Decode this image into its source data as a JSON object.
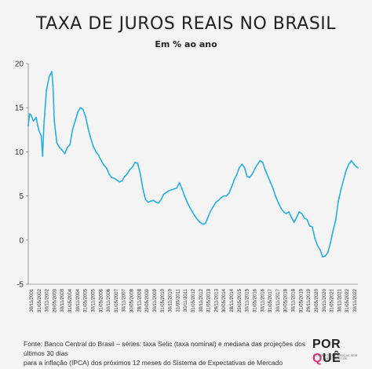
{
  "header": {
    "title": "TAXA DE JUROS REAIS NO BRASIL",
    "subtitle": "Em % ao ano"
  },
  "footer": {
    "source_line1": "Fonte: Banco Central do Brasil – séries: taxa Selic (taxa nominal) e mediana das projeções dos últimos 30 dias",
    "source_line2": "para a inflação (IPCA) dos próximos 12 meses do Sistema de Expectativas de Mercado"
  },
  "logo": {
    "text": "POR QUÊ",
    "tagline": "CONCEITOS E FINANÇAS SEM PRECONCEITOS",
    "accent_color": "#e0317c"
  },
  "chart_data": {
    "type": "line",
    "title": "TAXA DE JUROS REAIS NO BRASIL",
    "subtitle": "Em % ao ano",
    "xlabel": "",
    "ylabel": "",
    "ylim": [
      -5,
      20
    ],
    "y_ticks": [
      -5,
      0,
      5,
      10,
      15,
      20
    ],
    "grid": false,
    "line_color": "#2aaee0",
    "x_tick_labels": [
      "30/11/2001",
      "31/05/2002",
      "30/11/2002",
      "29/05/2003",
      "30/11/2003",
      "31/05/2004",
      "30/11/2004",
      "31/05/2005",
      "30/11/2005",
      "31/05/2006",
      "30/11/2006",
      "31/05/2007",
      "30/11/2007",
      "30/05/2008",
      "28/11/2008",
      "29/05/2009",
      "30/11/2009",
      "31/05/2010",
      "30/11/2010",
      "31/05/2011",
      "30/11/2011",
      "31/05/2012",
      "30/11/2012",
      "31/05/2013",
      "29/11/2013",
      "30/05/2014",
      "28/11/2014",
      "29/05/2015",
      "30/11/2015",
      "31/05/2016",
      "30/11/2016",
      "31/05/2017",
      "30/11/2017",
      "30/05/2018",
      "30/11/2018",
      "31/05/2019",
      "29/11/2019",
      "29/05/2020",
      "30/11/2020",
      "31/05/2021",
      "30/11/2021",
      "31/05/2022",
      "30/11/2022"
    ],
    "x": [
      "2001-11",
      "2001-12",
      "2002-01",
      "2002-03",
      "2002-05",
      "2002-07",
      "2002-09",
      "2002-10",
      "2002-11",
      "2003-01",
      "2003-03",
      "2003-05",
      "2003-06",
      "2003-07",
      "2003-09",
      "2003-11",
      "2004-01",
      "2004-03",
      "2004-05",
      "2004-07",
      "2004-09",
      "2004-11",
      "2005-01",
      "2005-03",
      "2005-05",
      "2005-07",
      "2005-09",
      "2005-11",
      "2006-01",
      "2006-03",
      "2006-05",
      "2006-07",
      "2006-09",
      "2006-11",
      "2007-01",
      "2007-03",
      "2007-05",
      "2007-07",
      "2007-09",
      "2007-11",
      "2008-01",
      "2008-03",
      "2008-05",
      "2008-07",
      "2008-09",
      "2008-11",
      "2009-01",
      "2009-03",
      "2009-05",
      "2009-07",
      "2009-09",
      "2009-11",
      "2010-01",
      "2010-03",
      "2010-05",
      "2010-07",
      "2010-09",
      "2010-11",
      "2011-01",
      "2011-03",
      "2011-05",
      "2011-07",
      "2011-09",
      "2011-11",
      "2012-01",
      "2012-03",
      "2012-05",
      "2012-07",
      "2012-09",
      "2012-11",
      "2013-01",
      "2013-03",
      "2013-05",
      "2013-07",
      "2013-09",
      "2013-11",
      "2014-01",
      "2014-03",
      "2014-05",
      "2014-07",
      "2014-09",
      "2014-11",
      "2015-01",
      "2015-03",
      "2015-05",
      "2015-07",
      "2015-09",
      "2015-11",
      "2016-01",
      "2016-03",
      "2016-05",
      "2016-07",
      "2016-09",
      "2016-11",
      "2017-01",
      "2017-03",
      "2017-05",
      "2017-07",
      "2017-09",
      "2017-11",
      "2018-01",
      "2018-03",
      "2018-05",
      "2018-07",
      "2018-09",
      "2018-11",
      "2019-01",
      "2019-03",
      "2019-05",
      "2019-07",
      "2019-09",
      "2019-11",
      "2020-01",
      "2020-03",
      "2020-05",
      "2020-07",
      "2020-09",
      "2020-11",
      "2021-01",
      "2021-03",
      "2021-05",
      "2021-07",
      "2021-09",
      "2021-11",
      "2022-01",
      "2022-03",
      "2022-05",
      "2022-07",
      "2022-09",
      "2022-11",
      "2022-12"
    ],
    "series": [
      {
        "values": [
          13.0,
          14.3,
          14.2,
          13.5,
          13.9,
          12.5,
          11.8,
          9.5,
          13.0,
          17.0,
          18.5,
          19.1,
          17.5,
          13.5,
          11.0,
          10.5,
          10.2,
          9.8,
          10.5,
          10.8,
          12.5,
          13.5,
          14.5,
          15.0,
          14.8,
          14.0,
          12.6,
          11.5,
          10.6,
          10.0,
          9.6,
          9.0,
          8.5,
          8.2,
          7.5,
          7.1,
          7.0,
          6.8,
          6.6,
          6.7,
          7.2,
          7.5,
          8.0,
          8.3,
          8.8,
          8.7,
          7.5,
          5.8,
          4.6,
          4.3,
          4.4,
          4.5,
          4.3,
          4.2,
          4.6,
          5.2,
          5.4,
          5.6,
          5.7,
          5.8,
          5.9,
          6.5,
          5.8,
          5.0,
          4.3,
          3.7,
          3.2,
          2.7,
          2.3,
          2.0,
          1.8,
          1.9,
          2.6,
          3.3,
          3.8,
          4.3,
          4.5,
          4.8,
          5.0,
          5.0,
          5.3,
          6.0,
          6.8,
          7.4,
          8.2,
          8.6,
          8.2,
          7.2,
          7.1,
          7.5,
          8.1,
          8.6,
          9.0,
          8.8,
          7.9,
          7.2,
          6.5,
          5.8,
          4.9,
          4.2,
          3.6,
          3.2,
          3.0,
          3.2,
          2.6,
          2.0,
          2.6,
          3.2,
          3.0,
          2.5,
          2.3,
          1.6,
          1.5,
          0.2,
          -0.6,
          -1.1,
          -1.9,
          -1.8,
          -1.4,
          -0.3,
          1.1,
          2.3,
          4.4,
          5.7,
          6.8,
          7.9,
          8.6,
          9.0,
          8.6,
          8.3,
          8.2
        ]
      }
    ]
  }
}
